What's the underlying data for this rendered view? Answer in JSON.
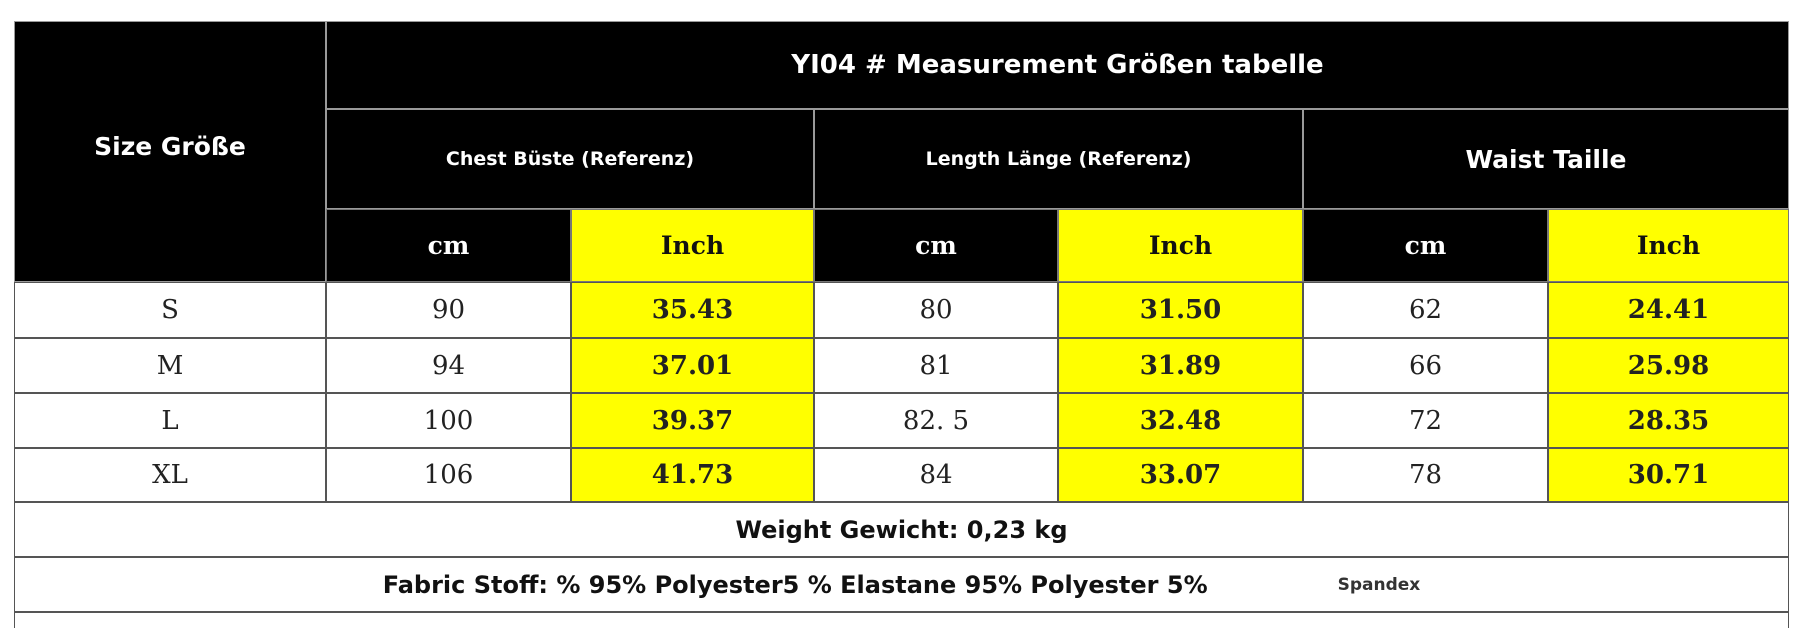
{
  "header": {
    "size_label": "Size Größe",
    "title": "YI04 # Measurement Größen tabelle",
    "groups": [
      "Chest Büste (Referenz)",
      "Length Länge (Referenz)",
      "Waist Taille"
    ],
    "units": [
      "cm",
      "Inch",
      "cm",
      "Inch",
      "cm",
      "Inch"
    ]
  },
  "table": {
    "rows": [
      [
        "S",
        "90",
        "35.43",
        "80",
        "31.50",
        "62",
        "24.41"
      ],
      [
        "M",
        "94",
        "37.01",
        "81",
        "31.89",
        "66",
        "25.98"
      ],
      [
        "L",
        "100",
        "39.37",
        "82. 5",
        "32.48",
        "72",
        "28.35"
      ],
      [
        "XL",
        "106",
        "41.73",
        "84",
        "33.07",
        "78",
        "30.71"
      ]
    ]
  },
  "footer": {
    "weight": "Weight Gewicht: 0,23 kg",
    "fabric": "Fabric Stoff: % 95% Polyester5 % Elastane 95% Polyester 5%",
    "fabric_note": "Spandex"
  }
}
